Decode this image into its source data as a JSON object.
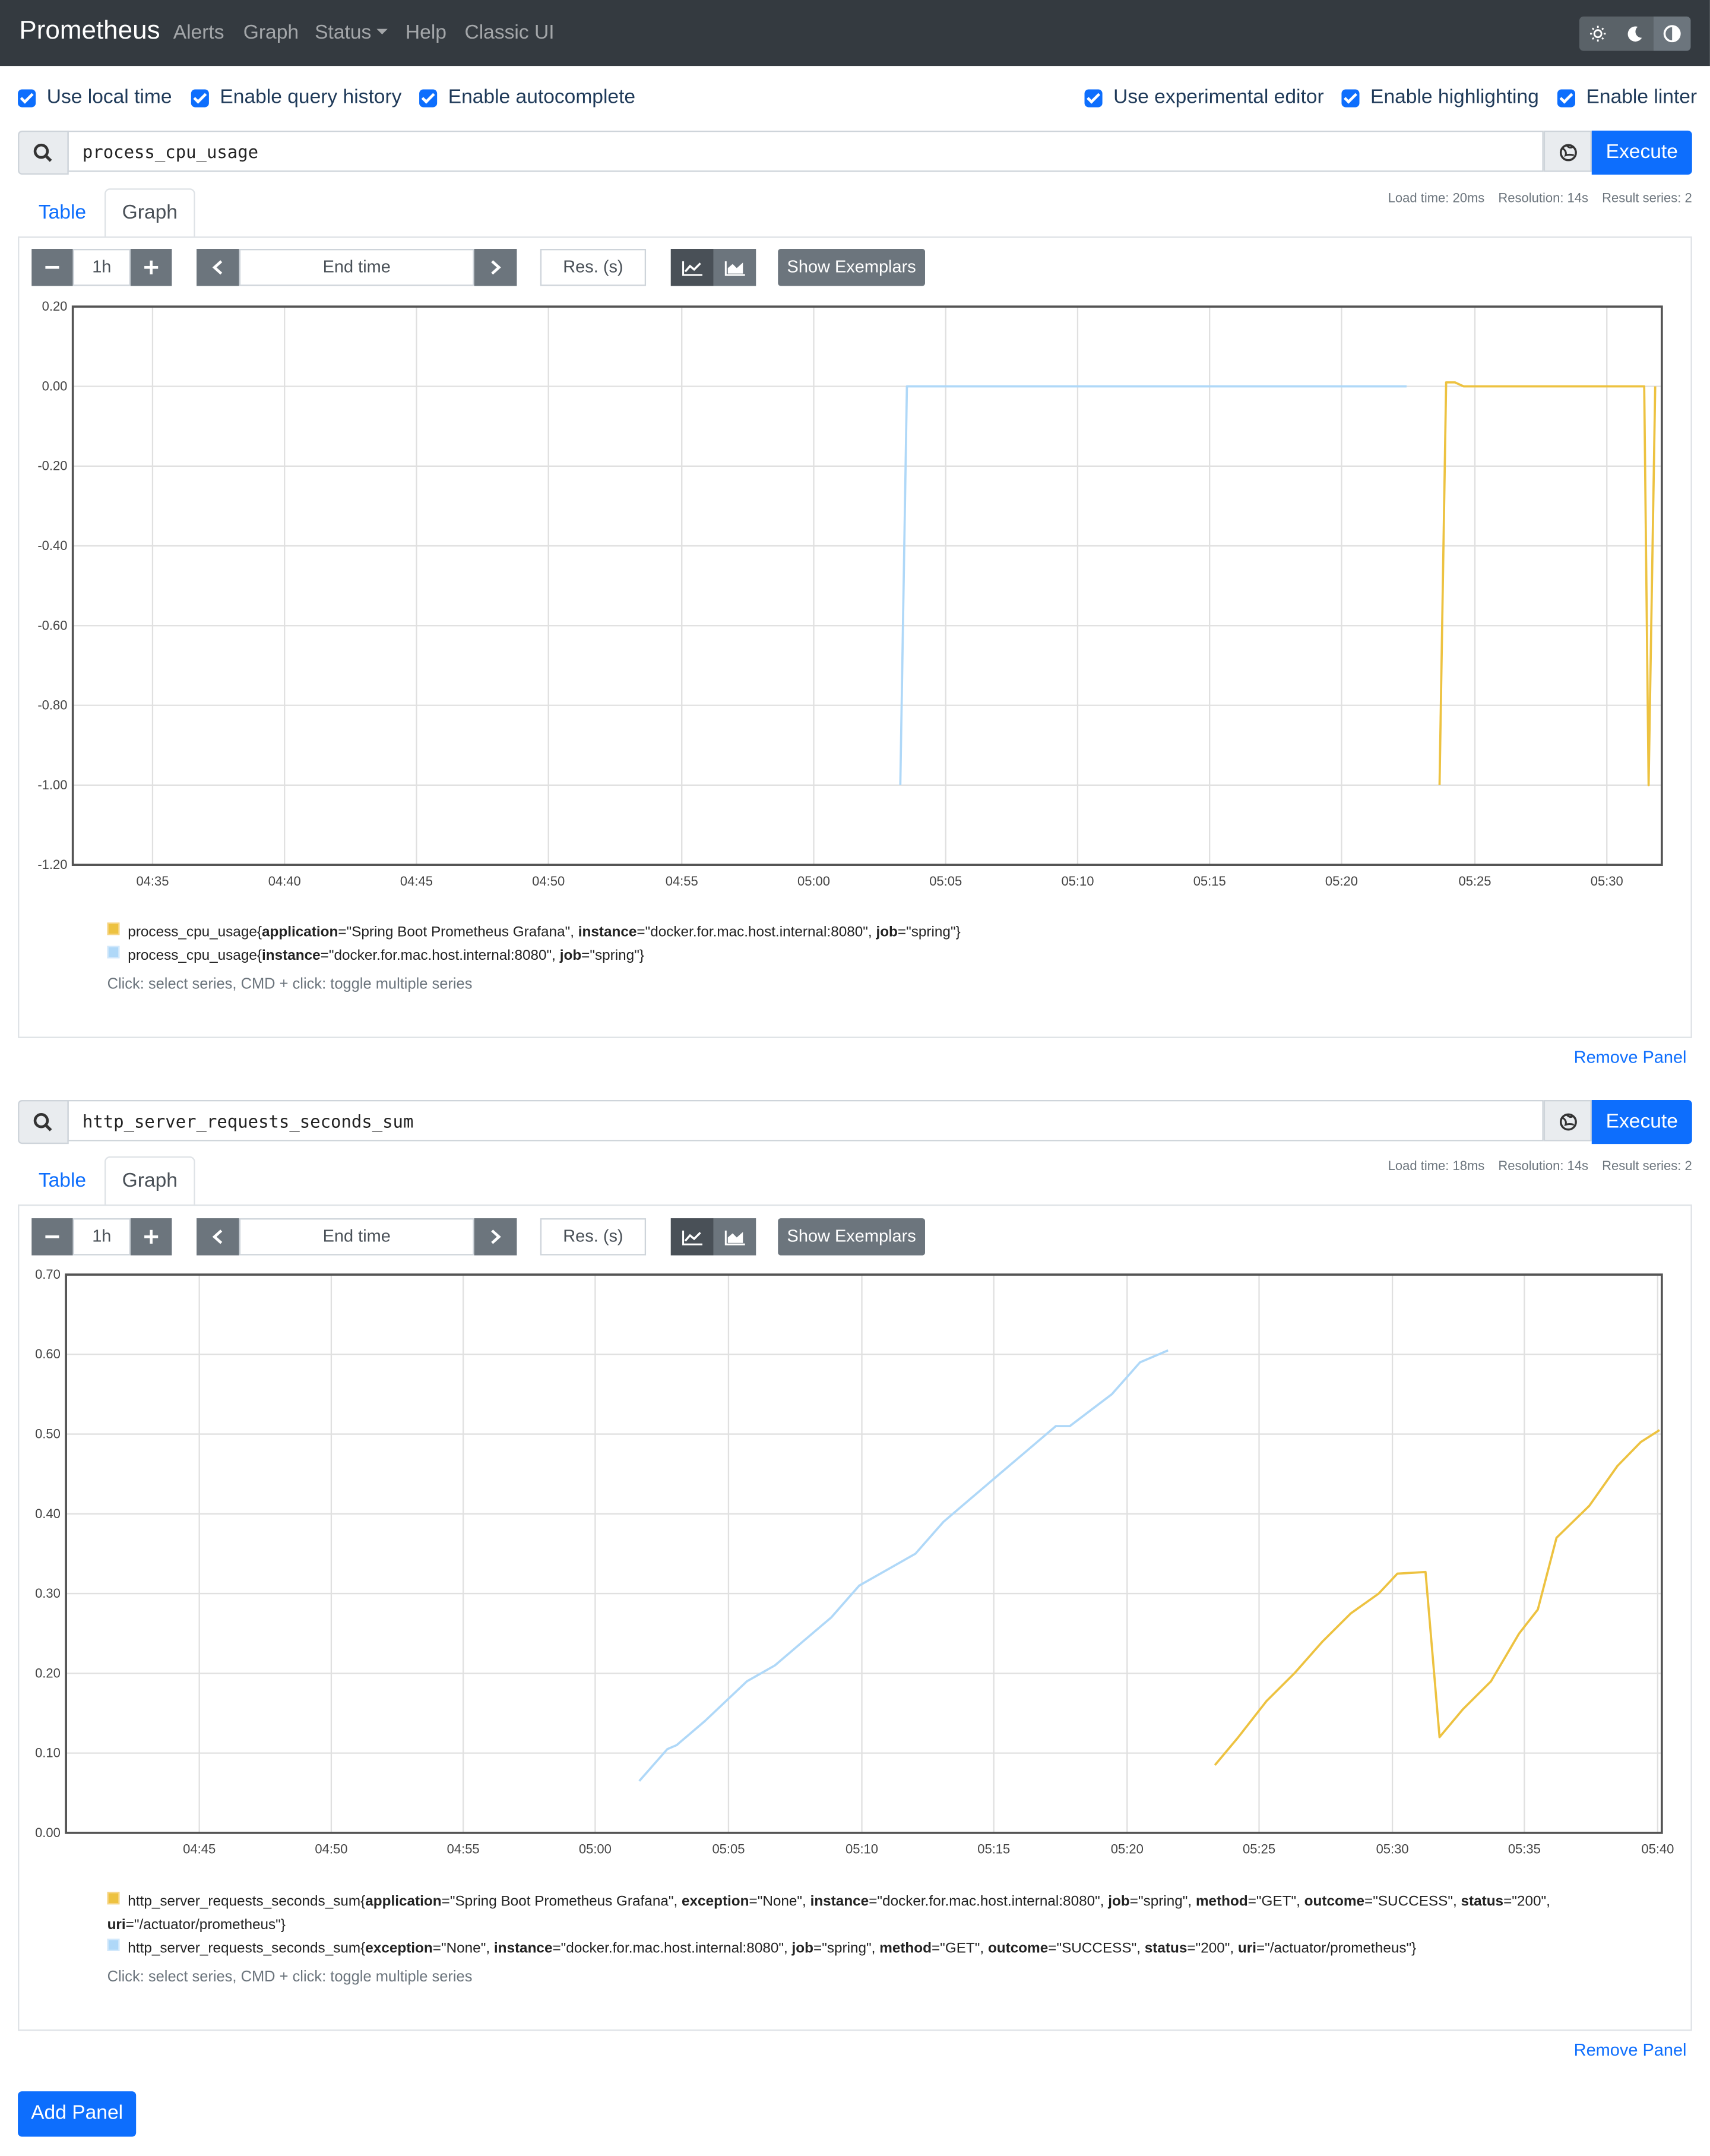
{
  "navbar": {
    "brand": "Prometheus",
    "links": [
      "Alerts",
      "Graph",
      "Status",
      "Help",
      "Classic UI"
    ],
    "status_has_caret": true,
    "theme_buttons": [
      "sun-icon",
      "moon-icon",
      "contrast-icon"
    ]
  },
  "options": {
    "use_local_time": "Use local time",
    "query_history": "Enable query history",
    "autocomplete": "Enable autocomplete",
    "experimental_editor": "Use experimental editor",
    "highlighting": "Enable highlighting",
    "linter": "Enable linter"
  },
  "common": {
    "execute": "Execute",
    "tab_table": "Table",
    "tab_graph": "Graph",
    "range": "1h",
    "end_time_placeholder": "End time",
    "res_placeholder": "Res. (s)",
    "show_exemplars": "Show Exemplars",
    "legend_hint": "Click: select series, CMD + click: toggle multiple series",
    "remove_panel": "Remove Panel",
    "add_panel": "Add Panel"
  },
  "panels": [
    {
      "query": "process_cpu_usage",
      "load_time": "Load time: 20ms",
      "resolution": "Resolution: 14s",
      "result_series": "Result series: 2",
      "legend": [
        {
          "color": "#edc240",
          "metric": "process_cpu_usage",
          "labels": [
            [
              "application",
              "Spring Boot Prometheus Grafana"
            ],
            [
              "instance",
              "docker.for.mac.host.internal:8080"
            ],
            [
              "job",
              "spring"
            ]
          ]
        },
        {
          "color": "#afd8f8",
          "metric": "process_cpu_usage",
          "labels": [
            [
              "instance",
              "docker.for.mac.host.internal:8080"
            ],
            [
              "job",
              "spring"
            ]
          ]
        }
      ]
    },
    {
      "query": "http_server_requests_seconds_sum",
      "load_time": "Load time: 18ms",
      "resolution": "Resolution: 14s",
      "result_series": "Result series: 2",
      "legend": [
        {
          "color": "#edc240",
          "metric": "http_server_requests_seconds_sum",
          "labels": [
            [
              "application",
              "Spring Boot Prometheus Grafana"
            ],
            [
              "exception",
              "None"
            ],
            [
              "instance",
              "docker.for.mac.host.internal:8080"
            ],
            [
              "job",
              "spring"
            ],
            [
              "method",
              "GET"
            ],
            [
              "outcome",
              "SUCCESS"
            ],
            [
              "status",
              "200"
            ],
            [
              "uri",
              "/actuator/prometheus"
            ]
          ]
        },
        {
          "color": "#afd8f8",
          "metric": "http_server_requests_seconds_sum",
          "labels": [
            [
              "exception",
              "None"
            ],
            [
              "instance",
              "docker.for.mac.host.internal:8080"
            ],
            [
              "job",
              "spring"
            ],
            [
              "method",
              "GET"
            ],
            [
              "outcome",
              "SUCCESS"
            ],
            [
              "status",
              "200"
            ],
            [
              "uri",
              "/actuator/prometheus"
            ]
          ]
        }
      ]
    }
  ],
  "chart_data": [
    {
      "type": "line",
      "y_ticks": [
        "0.20",
        "0.00",
        "-0.20",
        "-0.40",
        "-0.60",
        "-0.80",
        "-1.00",
        "-1.20"
      ],
      "ylim": [
        -1.2,
        0.2
      ],
      "x_ticks": [
        "04:35",
        "04:40",
        "04:45",
        "04:50",
        "04:55",
        "05:00",
        "05:05",
        "05:10",
        "05:15",
        "05:20",
        "05:25",
        "05:30"
      ],
      "xlim": [
        "04:32:00",
        "05:32:10"
      ],
      "grid": true,
      "series": [
        {
          "color": "#afd8f8",
          "points": [
            [
              "05:03:20",
              -1.0
            ],
            [
              "05:03:35",
              0.0
            ],
            [
              "05:10:00",
              0.0
            ],
            [
              "05:15:00",
              0.0
            ],
            [
              "05:22:30",
              0.0
            ]
          ]
        },
        {
          "color": "#edc240",
          "points": [
            [
              "05:23:45",
              -1.0
            ],
            [
              "05:24:00",
              0.01
            ],
            [
              "05:24:20",
              0.01
            ],
            [
              "05:24:40",
              0.0
            ],
            [
              "05:31:30",
              0.0
            ],
            [
              "05:31:40",
              -1.0
            ],
            [
              "05:31:55",
              0.0
            ]
          ]
        }
      ]
    },
    {
      "type": "line",
      "y_ticks": [
        "0.70",
        "0.60",
        "0.50",
        "0.40",
        "0.30",
        "0.20",
        "0.10",
        "0.00"
      ],
      "ylim": [
        0.0,
        0.7
      ],
      "x_ticks": [
        "04:45",
        "04:50",
        "04:55",
        "05:00",
        "05:05",
        "05:10",
        "05:15",
        "05:20",
        "05:25",
        "05:30",
        "05:35",
        "05:40"
      ],
      "xlim": [
        "04:43:15",
        "05:40:05"
      ],
      "grid": true,
      "series": [
        {
          "color": "#afd8f8",
          "points": [
            [
              "05:03:40",
              0.065
            ],
            [
              "05:04:40",
              0.105
            ],
            [
              "05:05:00",
              0.11
            ],
            [
              "05:06:00",
              0.14
            ],
            [
              "05:07:30",
              0.19
            ],
            [
              "05:08:30",
              0.21
            ],
            [
              "05:09:30",
              0.24
            ],
            [
              "05:10:30",
              0.27
            ],
            [
              "05:11:30",
              0.31
            ],
            [
              "05:12:00",
              0.32
            ],
            [
              "05:13:30",
              0.35
            ],
            [
              "05:14:30",
              0.39
            ],
            [
              "05:15:30",
              0.42
            ],
            [
              "05:16:30",
              0.45
            ],
            [
              "05:17:30",
              0.48
            ],
            [
              "05:18:30",
              0.51
            ],
            [
              "05:19:00",
              0.51
            ],
            [
              "05:20:30",
              0.55
            ],
            [
              "05:21:30",
              0.59
            ],
            [
              "05:22:30",
              0.605
            ]
          ]
        },
        {
          "color": "#edc240",
          "points": [
            [
              "05:24:10",
              0.085
            ],
            [
              "05:25:00",
              0.12
            ],
            [
              "05:26:00",
              0.165
            ],
            [
              "05:27:00",
              0.2
            ],
            [
              "05:28:00",
              0.24
            ],
            [
              "05:29:00",
              0.275
            ],
            [
              "05:30:00",
              0.3
            ],
            [
              "05:30:40",
              0.325
            ],
            [
              "05:31:40",
              0.327
            ],
            [
              "05:32:10",
              0.12
            ],
            [
              "05:33:00",
              0.155
            ],
            [
              "05:34:00",
              0.19
            ],
            [
              "05:35:00",
              0.25
            ],
            [
              "05:35:40",
              0.28
            ],
            [
              "05:36:20",
              0.37
            ],
            [
              "05:37:30",
              0.41
            ],
            [
              "05:38:30",
              0.46
            ],
            [
              "05:39:20",
              0.49
            ],
            [
              "05:40:00",
              0.505
            ]
          ]
        }
      ]
    }
  ]
}
